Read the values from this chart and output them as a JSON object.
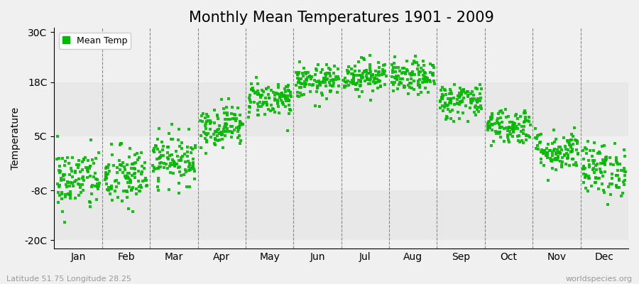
{
  "title": "Monthly Mean Temperatures 1901 - 2009",
  "ylabel": "Temperature",
  "bottom_left_text": "Latitude 51.75 Longitude 28.25",
  "bottom_right_text": "worldspecies.org",
  "legend_label": "Mean Temp",
  "yticks": [
    -20,
    -8,
    5,
    18,
    30
  ],
  "ytick_labels": [
    "-20C",
    "-8C",
    "5C",
    "18C",
    "30C"
  ],
  "ylim": [
    -22,
    31
  ],
  "months": [
    "Jan",
    "Feb",
    "Mar",
    "Apr",
    "May",
    "Jun",
    "Jul",
    "Aug",
    "Sep",
    "Oct",
    "Nov",
    "Dec"
  ],
  "n_years": 109,
  "seed": 42,
  "mean_temps": [
    -5.5,
    -5.0,
    -0.5,
    7.5,
    14.0,
    18.0,
    19.5,
    19.0,
    13.5,
    7.5,
    1.5,
    -3.0
  ],
  "std_temps": [
    3.8,
    3.8,
    3.0,
    2.5,
    2.2,
    2.0,
    2.0,
    2.0,
    2.2,
    2.2,
    2.5,
    3.2
  ],
  "dot_color": "#00bb00",
  "bg_color": "#f0f0f0",
  "plot_bg_color": "#f0f0f0",
  "band_colors": [
    "#e8e8e8",
    "#f0f0f0"
  ],
  "grid_color": "#888888",
  "title_fontsize": 15,
  "axis_fontsize": 10,
  "tick_fontsize": 10,
  "dot_size": 10,
  "dot_alpha": 0.9,
  "marker": "s"
}
